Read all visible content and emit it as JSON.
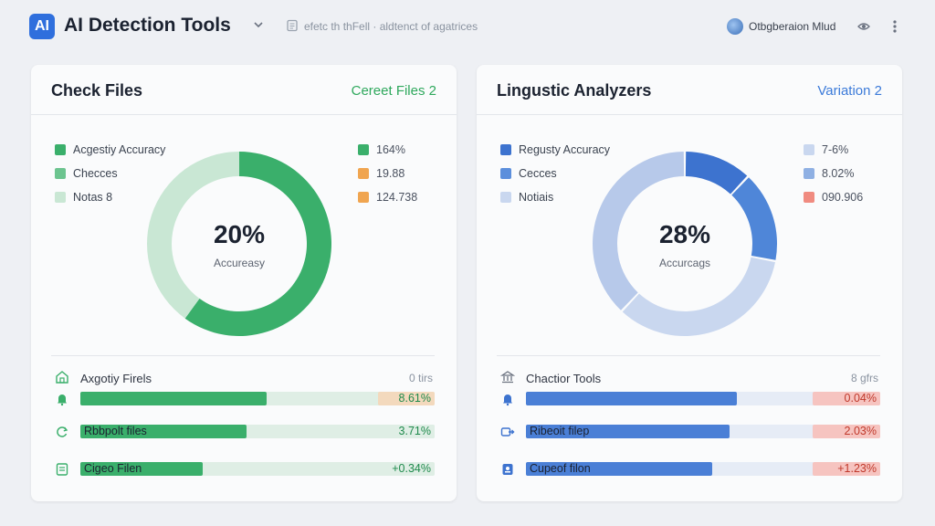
{
  "header": {
    "logo_text": "AI",
    "app_title": "AI Detection Tools",
    "breadcrumb": "efetc th thFell · aldtenct of agatrices",
    "user_name": "Otbgberaion Mlud"
  },
  "colors": {
    "green": "#3aaf6b",
    "green_light": "#c9e7d4",
    "green_pale": "#dfeee5",
    "blue": "#4a7fd6",
    "blue_light": "#c9d7ef",
    "orange": "#f0a550",
    "red_light": "#f6c4c0"
  },
  "cards": [
    {
      "title": "Check Files",
      "link": "Cereet Files 2",
      "link_color": "#2ea85c",
      "legend": [
        {
          "label": "Acgestiy Accuracy",
          "color": "#3aaf6b"
        },
        {
          "label": "Checces",
          "color": "#6cc48f"
        },
        {
          "label": "Notas 8",
          "color": "#c9e7d4"
        }
      ],
      "values": [
        {
          "text": "164%",
          "color": "#3aaf6b"
        },
        {
          "text": "19.88",
          "color": "#f0a550"
        },
        {
          "text": "124.738",
          "color": "#f0a550"
        }
      ],
      "donut_value": "20%",
      "donut_label": "Accureasy",
      "list_head": "Axgotiy Firels",
      "list_count": "0 tirs",
      "rows": [
        {
          "label": "",
          "value": "8.61%",
          "fill": 0.525,
          "value_color": "#1f8a4c"
        },
        {
          "label": "Rbbpolt files",
          "value": "3.71%",
          "fill": 0.47,
          "value_color": "#1f8a4c"
        },
        {
          "label": "Cigeo Filen",
          "value": "+0.34%",
          "fill": 0.345,
          "value_color": "#1f8a4c"
        }
      ],
      "chart_data": {
        "type": "pie",
        "values": [
          60,
          40
        ],
        "center_text": "20%"
      }
    },
    {
      "title": "Lingustic Analyzers",
      "link": "Variation 2",
      "link_color": "#3b7ad9",
      "legend": [
        {
          "label": "Regusty Accuracy",
          "color": "#3d73cf"
        },
        {
          "label": "Cecces",
          "color": "#5c8fdc"
        },
        {
          "label": "Notiais",
          "color": "#c9d7ef"
        }
      ],
      "values": [
        {
          "text": "7-6%",
          "color": "#c9d7ef"
        },
        {
          "text": "8.02%",
          "color": "#8fb0e3"
        },
        {
          "text": "090.906",
          "color": "#f08b80"
        }
      ],
      "donut_value": "28%",
      "donut_label": "Accurcags",
      "list_head": "Chactior Tools",
      "list_count": "8 gfrs",
      "rows": [
        {
          "label": "",
          "value": "0.04%",
          "fill": 0.595,
          "value_color": "#c0392b"
        },
        {
          "label": "Ribeoit filep",
          "value": "2.03%",
          "fill": 0.575,
          "value_color": "#c0392b"
        },
        {
          "label": "Cupeof filon",
          "value": "+1.23%",
          "fill": 0.525,
          "value_color": "#c0392b"
        }
      ],
      "chart_data": {
        "type": "pie",
        "values": [
          12,
          16,
          34,
          38
        ],
        "center_text": "28%"
      }
    }
  ]
}
